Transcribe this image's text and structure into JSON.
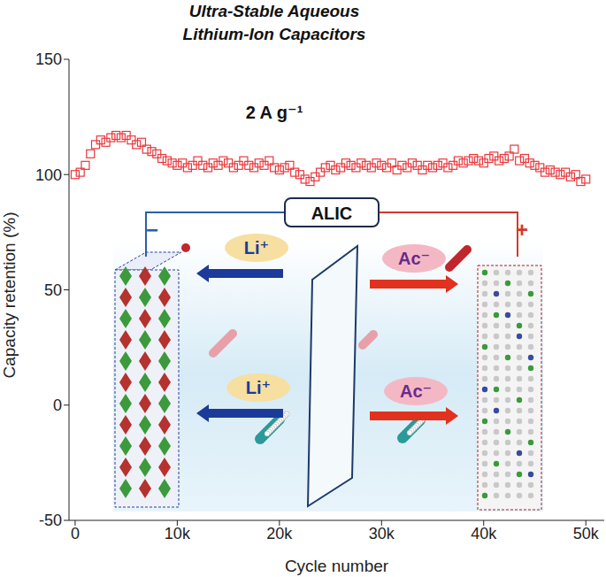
{
  "chart_data": {
    "type": "scatter",
    "title": "Ultra-Stable Aqueous\nLithium-Ion Capacitors",
    "x_label": "Cycle number",
    "y_label": "Capacity retention (%)",
    "annotations": {
      "condition": "2 A g⁻¹",
      "inset": {
        "device": "ALIC",
        "negative": "−",
        "positive": "+",
        "cation": "Li⁺",
        "anion": "Ac⁻"
      }
    },
    "color": "#e8383d",
    "marker": "square_open",
    "xlim": [
      -600,
      51800
    ],
    "xticks": [
      0,
      {
        "value": 10000,
        "label": "10k"
      },
      {
        "value": 20000,
        "label": "20k"
      },
      {
        "value": 30000,
        "label": "30k"
      },
      {
        "value": 40000,
        "label": "40k"
      },
      {
        "value": 50000,
        "label": "50k"
      }
    ],
    "ylim": [
      -50,
      150
    ],
    "yticks": [
      -50,
      0,
      50,
      100,
      150
    ],
    "grid": false,
    "x": [
      0,
      500,
      1000,
      1500,
      2000,
      2500,
      3000,
      3500,
      4000,
      4500,
      5000,
      5500,
      6000,
      6500,
      7000,
      7500,
      8000,
      8500,
      9000,
      9500,
      10000,
      10500,
      11000,
      11500,
      12000,
      12500,
      13000,
      13500,
      14000,
      14500,
      15000,
      15500,
      16000,
      16500,
      17000,
      17500,
      18000,
      18500,
      19000,
      19500,
      20000,
      20500,
      21000,
      21500,
      22000,
      22500,
      23000,
      23500,
      24000,
      24500,
      25000,
      25500,
      26000,
      26500,
      27000,
      27500,
      28000,
      28500,
      29000,
      29500,
      30000,
      30500,
      31000,
      31500,
      32000,
      32500,
      33000,
      33500,
      34000,
      34500,
      35000,
      35500,
      36000,
      36500,
      37000,
      37500,
      38000,
      38500,
      39000,
      39500,
      40000,
      40500,
      41000,
      41500,
      42000,
      42500,
      43000,
      43500,
      44000,
      44500,
      45000,
      45500,
      46000,
      46500,
      47000,
      47500,
      48000,
      48500,
      49000,
      49500,
      50000
    ],
    "values": [
      100,
      101,
      104,
      109,
      113,
      115,
      114,
      116,
      117,
      116,
      117,
      115,
      113,
      114,
      111,
      110,
      109,
      107,
      106,
      105,
      104,
      105,
      103,
      104,
      106,
      104,
      103,
      105,
      104,
      106,
      105,
      103,
      104,
      106,
      104,
      103,
      105,
      104,
      106,
      103,
      102,
      103,
      104,
      101,
      100,
      98,
      97,
      99,
      101,
      103,
      104,
      102,
      103,
      105,
      104,
      103,
      105,
      104,
      103,
      105,
      104,
      103,
      105,
      102,
      104,
      103,
      105,
      104,
      102,
      104,
      103,
      104,
      105,
      103,
      104,
      106,
      105,
      106,
      107,
      106,
      105,
      107,
      108,
      106,
      107,
      108,
      111,
      106,
      107,
      105,
      104,
      103,
      101,
      102,
      101,
      100,
      101,
      99,
      100,
      97,
      98
    ]
  }
}
